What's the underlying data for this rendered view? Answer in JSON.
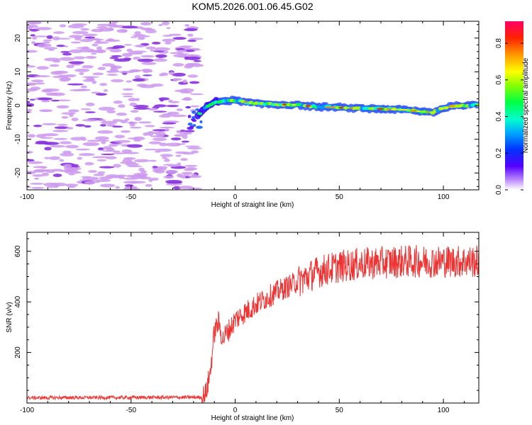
{
  "title": "KOM5.2026.001.06.45.G02",
  "chart_data": [
    {
      "type": "heatmap",
      "title": "",
      "xlabel": "Height of straight line (km)",
      "ylabel": "Frequency (Hz)",
      "xlim": [
        -100,
        117
      ],
      "ylim": [
        -25,
        25
      ],
      "xticks": [
        -100,
        -50,
        0,
        50,
        100
      ],
      "yticks": [
        -20,
        -10,
        0,
        10,
        20
      ],
      "colorbar": {
        "label": "Normalized spectral amplitude",
        "range": [
          0,
          0.92
        ],
        "ticks": [
          0.0,
          0.2,
          0.4,
          0.6,
          0.8
        ],
        "tick_labels": [
          "0.0",
          "0.2",
          "0.4",
          "0.6",
          "0.8"
        ]
      },
      "signal_trace": {
        "description_points": [
          {
            "x": -18,
            "y": -3
          },
          {
            "x": -15,
            "y": -1
          },
          {
            "x": -10,
            "y": 1
          },
          {
            "x": -5,
            "y": 1.5
          },
          {
            "x": 0,
            "y": 1.5
          },
          {
            "x": 10,
            "y": 0.6
          },
          {
            "x": 20,
            "y": 0.3
          },
          {
            "x": 30,
            "y": 0.2
          },
          {
            "x": 40,
            "y": -0.4
          },
          {
            "x": 50,
            "y": -0.6
          },
          {
            "x": 60,
            "y": -0.8
          },
          {
            "x": 70,
            "y": -1
          },
          {
            "x": 80,
            "y": -1.2
          },
          {
            "x": 90,
            "y": -1.8
          },
          {
            "x": 95,
            "y": -2
          },
          {
            "x": 100,
            "y": -0.8
          },
          {
            "x": 105,
            "y": 0
          },
          {
            "x": 117,
            "y": 0.2
          }
        ]
      },
      "noise_extent_x": [
        -100,
        -18
      ]
    },
    {
      "type": "line",
      "title": "",
      "xlabel": "Height of straight line (km)",
      "ylabel": "SNR (v/v)",
      "xlim": [
        -100,
        117
      ],
      "ylim": [
        0,
        675
      ],
      "xticks": [
        -100,
        -50,
        0,
        50,
        100
      ],
      "yticks": [
        200,
        400,
        600
      ],
      "series": [
        {
          "name": "SNR",
          "color": "#ee3333",
          "envelope": {
            "x": [
              -100,
              -16,
              -14,
              -12,
              -10,
              -8,
              -6,
              -4,
              -2,
              0,
              5,
              10,
              20,
              30,
              40,
              50,
              60,
              70,
              80,
              90,
              100,
              110,
              117
            ],
            "y": [
              18,
              20,
              40,
              120,
              280,
              320,
              250,
              280,
              300,
              330,
              360,
              390,
              440,
              480,
              520,
              540,
              550,
              555,
              560,
              560,
              560,
              560,
              560
            ]
          }
        }
      ]
    }
  ],
  "colors": {
    "axes": "#000000",
    "line": "#ee3333",
    "noise": "#cc99ee",
    "noise_dark": "#8833dd"
  }
}
